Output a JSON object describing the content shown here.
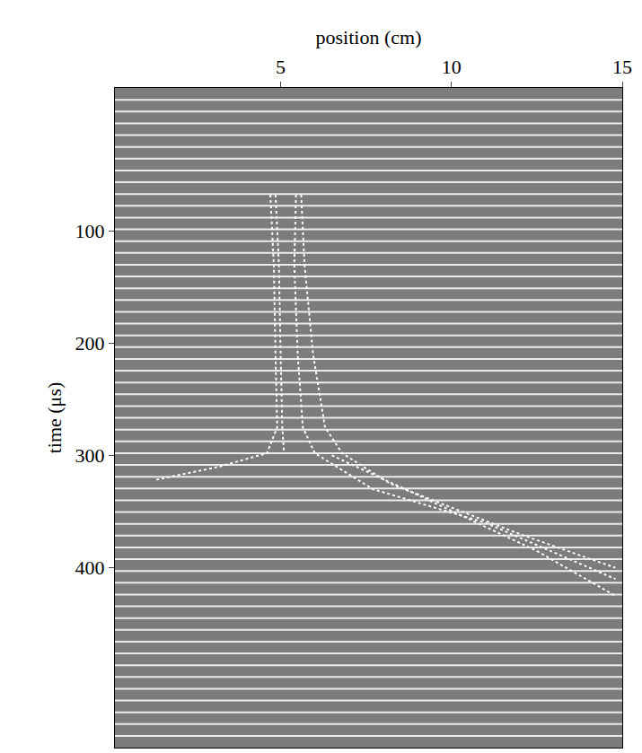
{
  "chart_data": {
    "type": "line",
    "x_label": "position (cm)",
    "y_label": "time (μs)",
    "xlim": [
      0.15,
      15
    ],
    "xticks": [
      5,
      10,
      15
    ],
    "ylim": [
      560,
      -27
    ],
    "yticks": [
      100,
      200,
      300,
      400
    ],
    "grid": false,
    "line_style": "dotted",
    "color": "#ffffff",
    "series": [
      {
        "x": [
          4.7,
          4.8,
          4.85,
          4.9,
          4.6,
          3.2,
          1.3
        ],
        "values": [
          68,
          130,
          210,
          275,
          298,
          310,
          322
        ]
      },
      {
        "x": [
          4.85,
          4.95,
          5.0,
          5.05,
          5.1
        ],
        "values": [
          68,
          130,
          210,
          275,
          298
        ]
      },
      {
        "x": [
          5.45,
          5.4,
          5.5,
          5.65,
          6.0,
          7.7,
          11.0,
          14.8
        ],
        "values": [
          68,
          130,
          210,
          275,
          298,
          330,
          360,
          410
        ]
      },
      {
        "x": [
          5.6,
          5.7,
          5.95,
          6.3,
          6.8,
          8.2,
          12.0,
          14.8
        ],
        "values": [
          68,
          130,
          210,
          275,
          298,
          325,
          370,
          400
        ]
      },
      {
        "x": [
          6.5,
          9.0,
          12.5,
          14.8
        ],
        "values": [
          300,
          335,
          385,
          425
        ]
      }
    ]
  }
}
